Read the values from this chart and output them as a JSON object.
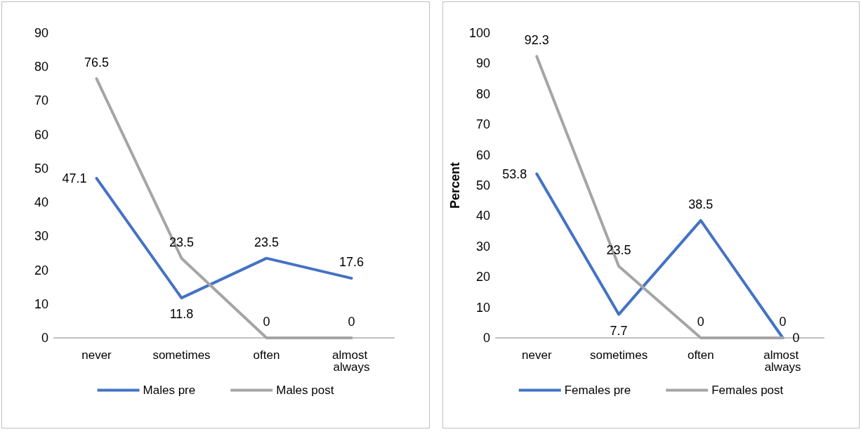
{
  "chart_data": [
    {
      "type": "line",
      "categories": [
        "never",
        "sometimes",
        "often",
        "almost always"
      ],
      "ylim": [
        0,
        90
      ],
      "yticks": [
        0,
        10,
        20,
        30,
        40,
        50,
        60,
        70,
        80,
        90
      ],
      "grid": false,
      "legend": "bottom",
      "marker": "none",
      "line_style": "solid",
      "data_labels": true,
      "series": [
        {
          "name": "Males pre",
          "color": "#4472c4",
          "values": [
            47.1,
            11.8,
            23.5,
            17.6
          ]
        },
        {
          "name": "Males post",
          "color": "#a5a5a5",
          "values": [
            76.5,
            23.5,
            0,
            0
          ]
        }
      ]
    },
    {
      "type": "line",
      "ylabel": "Percent",
      "categories": [
        "never",
        "sometimes",
        "often",
        "almost always"
      ],
      "ylim": [
        0,
        100
      ],
      "yticks": [
        0,
        10,
        20,
        30,
        40,
        50,
        60,
        70,
        80,
        90,
        100
      ],
      "grid": false,
      "legend": "bottom",
      "marker": "none",
      "line_style": "solid",
      "data_labels": true,
      "series": [
        {
          "name": "Females pre",
          "color": "#4472c4",
          "values": [
            53.8,
            7.7,
            38.5,
            0
          ]
        },
        {
          "name": "Females post",
          "color": "#a5a5a5",
          "values": [
            92.3,
            23.5,
            0,
            0
          ]
        }
      ]
    }
  ]
}
